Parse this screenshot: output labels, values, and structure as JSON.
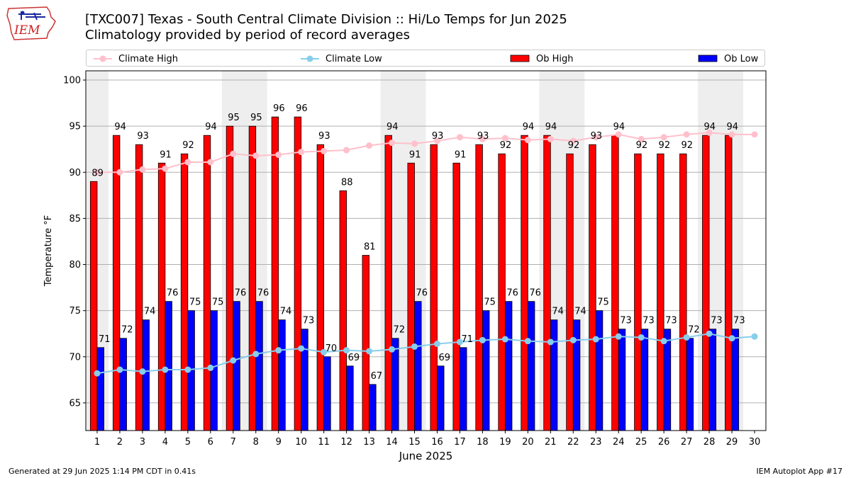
{
  "header": {
    "title": "[TXC007] Texas - South Central Climate Division :: Hi/Lo Temps for Jun 2025",
    "subtitle": "Climatology provided by period of record averages",
    "logo_text": "IEM"
  },
  "legend": {
    "climate_high": "Climate High",
    "climate_low": "Climate Low",
    "ob_high": "Ob High",
    "ob_low": "Ob Low"
  },
  "footer": {
    "generated": "Generated at 29 Jun 2025 1:14 PM CDT in 0.41s",
    "app": "IEM Autoplot App #17"
  },
  "colors": {
    "ob_high": "#ff0000",
    "ob_low": "#0000ff",
    "climate_high": "#ffc0cb",
    "climate_low": "#87ceeb",
    "weekend_shade": "#eeeeee",
    "grid": "#b0b0b0"
  },
  "chart_data": {
    "type": "bar",
    "xlabel": "June 2025",
    "ylabel": "Temperature °F",
    "ylim": [
      62,
      101
    ],
    "yticks": [
      65,
      70,
      75,
      80,
      85,
      90,
      95,
      100
    ],
    "categories": [
      "1",
      "2",
      "3",
      "4",
      "5",
      "6",
      "7",
      "8",
      "9",
      "10",
      "11",
      "12",
      "13",
      "14",
      "15",
      "16",
      "17",
      "18",
      "19",
      "20",
      "21",
      "22",
      "23",
      "24",
      "25",
      "26",
      "27",
      "28",
      "29",
      "30"
    ],
    "grid": "horizontal",
    "legend_position": "top",
    "weekend_shading": [
      [
        1,
        1
      ],
      [
        7,
        8
      ],
      [
        14,
        15
      ],
      [
        21,
        22
      ],
      [
        28,
        29
      ]
    ],
    "series": [
      {
        "name": "Ob High",
        "kind": "bar",
        "values": [
          89,
          94,
          93,
          91,
          92,
          94,
          95,
          95,
          96,
          96,
          93,
          88,
          81,
          94,
          91,
          93,
          91,
          93,
          92,
          94,
          94,
          92,
          93,
          94,
          92,
          92,
          92,
          94,
          94,
          null
        ]
      },
      {
        "name": "Ob Low",
        "kind": "bar",
        "values": [
          71,
          72,
          74,
          76,
          75,
          75,
          76,
          76,
          74,
          73,
          70,
          69,
          67,
          72,
          76,
          69,
          71,
          75,
          76,
          76,
          74,
          74,
          75,
          73,
          73,
          73,
          72,
          73,
          73,
          null
        ]
      },
      {
        "name": "Climate High",
        "kind": "line",
        "values": [
          90.0,
          90.0,
          90.3,
          90.4,
          91.1,
          91.1,
          92.0,
          91.8,
          91.9,
          92.2,
          92.3,
          92.4,
          92.9,
          93.2,
          93.1,
          93.4,
          93.8,
          93.6,
          93.7,
          93.5,
          93.6,
          93.4,
          93.8,
          94.1,
          93.6,
          93.8,
          94.1,
          94.3,
          94.1,
          94.1
        ]
      },
      {
        "name": "Climate Low",
        "kind": "line",
        "values": [
          68.2,
          68.6,
          68.4,
          68.6,
          68.6,
          68.8,
          69.6,
          70.3,
          70.7,
          70.9,
          70.5,
          70.7,
          70.6,
          70.8,
          71.1,
          71.4,
          71.6,
          71.8,
          71.9,
          71.7,
          71.6,
          71.8,
          71.9,
          72.2,
          72.1,
          71.7,
          72.1,
          72.5,
          72.0,
          72.2
        ]
      }
    ]
  }
}
